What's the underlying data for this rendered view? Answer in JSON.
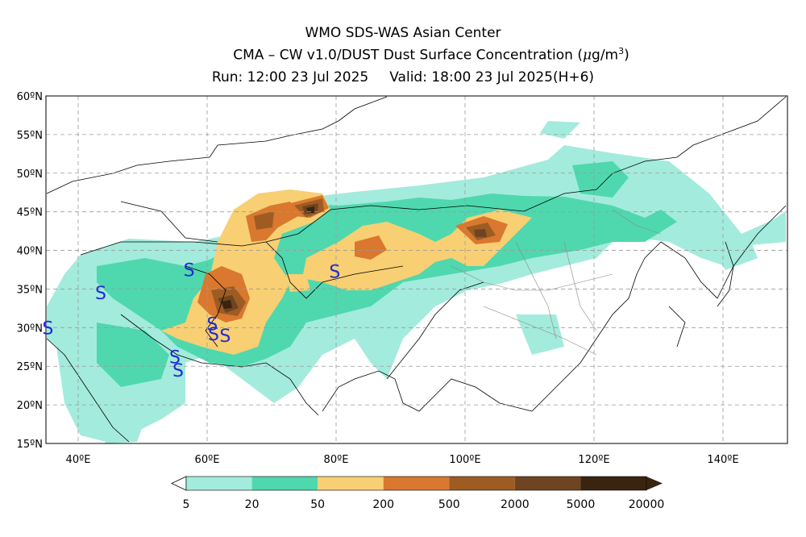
{
  "header": {
    "line1": "WMO SDS-WAS Asian Center",
    "line2_prefix": "CMA – CW v1.0/DUST Dust Surface Concentration (",
    "line2_unit_mu": "μ",
    "line2_unit_rest": "g/m",
    "line2_unit_sup": "3",
    "line2_suffix": ")",
    "run": "Run: 12:00 23 Jul 2025",
    "valid": "Valid: 18:00 23 Jul 2025(H+6)"
  },
  "map_data": {
    "lon_range": [
      35,
      150
    ],
    "lat_range": [
      15,
      60
    ],
    "lat_ticks": [
      "60ºN",
      "55ºN",
      "50ºN",
      "45ºN",
      "40ºN",
      "35ºN",
      "30ºN",
      "25ºN",
      "20ºN",
      "15ºN"
    ],
    "lon_ticks": [
      "40ºE",
      "60ºE",
      "80ºE",
      "100ºE",
      "120ºE",
      "140ºE"
    ],
    "grid": true,
    "dust_storm_symbol": "S",
    "symbol_color": "#1f2bd6",
    "storm_markers": [
      {
        "lon": 43.5,
        "lat": 34.5
      },
      {
        "lon": 57.2,
        "lat": 37.5
      },
      {
        "lon": 35.3,
        "lat": 30.0
      },
      {
        "lon": 60.8,
        "lat": 30.5
      },
      {
        "lon": 61.0,
        "lat": 29.2
      },
      {
        "lon": 62.8,
        "lat": 29.0
      },
      {
        "lon": 55.0,
        "lat": 26.2
      },
      {
        "lon": 55.5,
        "lat": 24.5
      },
      {
        "lon": 79.8,
        "lat": 37.3
      }
    ]
  },
  "legend": {
    "labels": [
      "5",
      "20",
      "50",
      "200",
      "500",
      "2000",
      "5000",
      "20000"
    ],
    "colors": [
      "#a3ebdd",
      "#4fd8ae",
      "#f8cf72",
      "#d9782e",
      "#9e5c23",
      "#6e4520",
      "#3a2410"
    ]
  }
}
